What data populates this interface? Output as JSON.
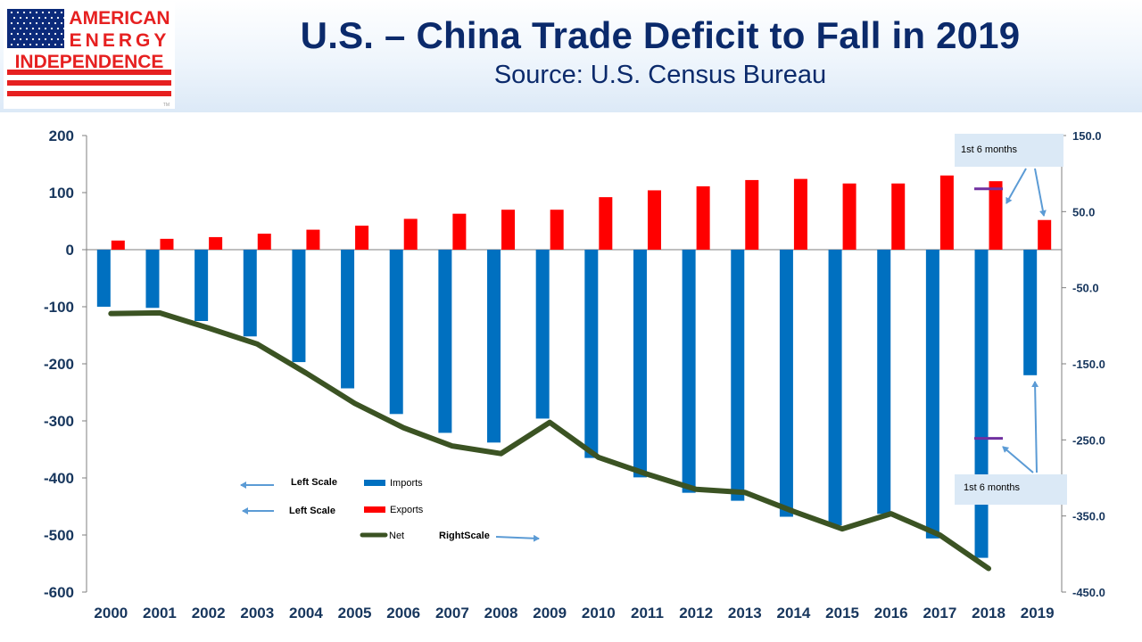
{
  "header": {
    "title": "U.S. – China Trade Deficit to Fall in 2019",
    "subtitle": "Source: U.S. Census Bureau",
    "logo": {
      "line1": "AMERICAN",
      "line2": "ENERGY",
      "line3": "INDEPENDENCE",
      "tm": "TM"
    }
  },
  "legend": {
    "imports_label": "Imports",
    "exports_label": "Exports",
    "net_label": "Net",
    "left_scale_1": "Left Scale",
    "left_scale_2": "Left Scale",
    "right_scale": "RightScale"
  },
  "annotations": {
    "top_note": "1st 6 months",
    "bottom_note": "1st 6 months"
  },
  "colors": {
    "imports": "#0070c0",
    "exports": "#ff0000",
    "net": "#3b5323",
    "marker": "#7030a0",
    "arrow": "#5b9bd5",
    "axis_text": "#17365d",
    "note_box": "#dbe9f6"
  },
  "chart_data": {
    "type": "bar",
    "categories": [
      "2000",
      "2001",
      "2002",
      "2003",
      "2004",
      "2005",
      "2006",
      "2007",
      "2008",
      "2009",
      "2010",
      "2011",
      "2012",
      "2013",
      "2014",
      "2015",
      "2016",
      "2017",
      "2018",
      "2019"
    ],
    "series": [
      {
        "name": "Imports",
        "axis": "left",
        "type": "bar",
        "values": [
          -100,
          -102,
          -125,
          -152,
          -197,
          -243,
          -288,
          -321,
          -338,
          -296,
          -365,
          -399,
          -426,
          -440,
          -468,
          -483,
          -463,
          -506,
          -540,
          -220
        ]
      },
      {
        "name": "Exports",
        "axis": "left",
        "type": "bar",
        "values": [
          16,
          19,
          22,
          28,
          35,
          42,
          54,
          63,
          70,
          70,
          92,
          104,
          111,
          122,
          124,
          116,
          116,
          130,
          120,
          52
        ]
      },
      {
        "name": "Net",
        "axis": "right",
        "type": "line",
        "values": [
          -84,
          -83,
          -103,
          -124,
          -162,
          -202,
          -234,
          -258,
          -268,
          -227,
          -273,
          -295,
          -315,
          -319,
          -344,
          -367,
          -347,
          -375,
          -419,
          null
        ]
      }
    ],
    "markers": [
      {
        "category": "2018",
        "axis": "right",
        "value": 80
      },
      {
        "category": "2018",
        "axis": "right",
        "value": -248
      }
    ],
    "left_axis": {
      "ylim": [
        -600,
        200
      ],
      "ticks": [
        "200",
        "100",
        "0",
        "-100",
        "-200",
        "-300",
        "-400",
        "-500",
        "-600"
      ]
    },
    "right_axis": {
      "ylim": [
        -450,
        150
      ],
      "ticks": [
        "150.0",
        "50.0",
        "-50.0",
        "-150.0",
        "-250.0",
        "-350.0",
        "-450.0"
      ]
    },
    "grid": false,
    "legend_position": "bottom-left"
  }
}
